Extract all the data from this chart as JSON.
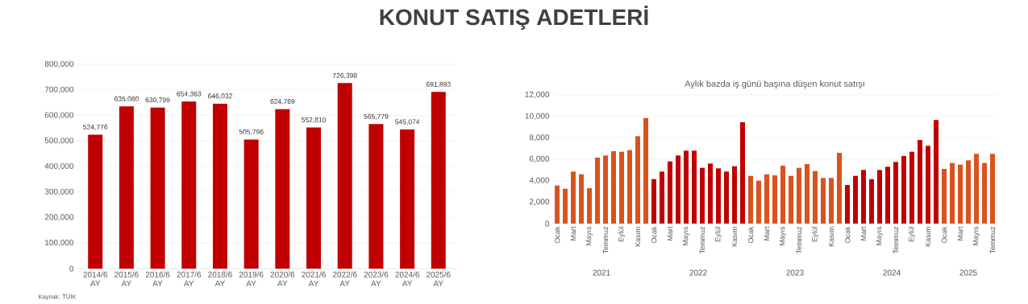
{
  "chart_data": [
    {
      "type": "bar",
      "title": "KONUT SATIŞ ADETLERİ",
      "categories": [
        "2014/6 AY",
        "2015/6 AY",
        "2016/6 AY",
        "2017/6 AY",
        "2018/6 AY",
        "2019/6 AY",
        "2020/6 AY",
        "2021/6 AY",
        "2022/6 AY",
        "2023/6 AY",
        "2024/6 AY",
        "2025/6 AY"
      ],
      "values": [
        524776,
        635080,
        630799,
        654363,
        646032,
        505796,
        624769,
        552810,
        726398,
        565779,
        545074,
        691893
      ],
      "value_labels": [
        "524,776",
        "635,080",
        "630,799",
        "654,363",
        "646,032",
        "505,796",
        "624,769",
        "552,810",
        "726,398",
        "565,779",
        "545,074",
        "691,893"
      ],
      "color": "#c00000",
      "ylim": [
        0,
        800000
      ],
      "yticks": [
        {
          "value": 0,
          "label": "0"
        },
        {
          "value": 100000,
          "label": "100,000"
        },
        {
          "value": 200000,
          "label": "200,000"
        },
        {
          "value": 300000,
          "label": "300,000"
        },
        {
          "value": 400000,
          "label": "400,000"
        },
        {
          "value": 500000,
          "label": "500,000"
        },
        {
          "value": 600000,
          "label": "600,000"
        },
        {
          "value": 700000,
          "label": "700,000"
        },
        {
          "value": 800000,
          "label": "800,000"
        }
      ],
      "grid": "y",
      "annotations": [
        "Kaynak: TÜİK"
      ]
    },
    {
      "type": "bar",
      "title": "Aylık bazda iş günü başına düşen konut satışı",
      "categories": [
        "Ocak",
        null,
        "Mart",
        null,
        "Mayıs",
        null,
        "Temmuz",
        null,
        "Eylül",
        null,
        "Kasım",
        null,
        "Ocak",
        null,
        "Mart",
        null,
        "Mayıs",
        null,
        "Temmuz",
        null,
        "Eylül",
        null,
        "Kasım",
        null,
        "Ocak",
        null,
        "Mart",
        null,
        "Mayıs",
        null,
        "Temmuz",
        null,
        "Eylül",
        null,
        "Kasım",
        null,
        "Ocak",
        null,
        "Mart",
        null,
        "Mayıs",
        null,
        "Temmuz",
        null,
        "Eylül",
        null,
        "Kasım",
        null,
        "Ocak",
        null,
        "Mart",
        null,
        "Mayıs",
        null,
        "Temmuz"
      ],
      "values": [
        3550,
        3250,
        4850,
        4600,
        3300,
        6150,
        6350,
        6750,
        6700,
        6850,
        8150,
        9850,
        4150,
        4850,
        5800,
        6350,
        6800,
        6800,
        5200,
        5600,
        5150,
        4850,
        5350,
        9450,
        4450,
        4000,
        4600,
        4500,
        5400,
        4450,
        5200,
        5550,
        4900,
        4250,
        4250,
        6600,
        3600,
        4450,
        5000,
        4150,
        5000,
        5300,
        5750,
        6300,
        6700,
        7800,
        7250,
        9650,
        5100,
        5650,
        5500,
        5900,
        6500,
        5650,
        6500
      ],
      "colors": [
        "#d9531e",
        "#d9531e",
        "#d9531e",
        "#d9531e",
        "#d9531e",
        "#d9531e",
        "#d9531e",
        "#d9531e",
        "#d9531e",
        "#d9531e",
        "#d9531e",
        "#d9531e",
        "#c00000",
        "#c00000",
        "#c00000",
        "#c00000",
        "#c00000",
        "#c00000",
        "#c00000",
        "#c00000",
        "#c00000",
        "#c00000",
        "#c00000",
        "#c00000",
        "#d9531e",
        "#d9531e",
        "#d9531e",
        "#d9531e",
        "#d9531e",
        "#d9531e",
        "#d9531e",
        "#d9531e",
        "#d9531e",
        "#d9531e",
        "#d9531e",
        "#d9531e",
        "#c00000",
        "#c00000",
        "#c00000",
        "#c00000",
        "#c00000",
        "#c00000",
        "#c00000",
        "#c00000",
        "#c00000",
        "#c00000",
        "#c00000",
        "#c00000",
        "#d9531e",
        "#d9531e",
        "#d9531e",
        "#d9531e",
        "#d9531e",
        "#d9531e",
        "#d9531e"
      ],
      "ylim": [
        0,
        12000
      ],
      "yticks": [
        {
          "value": 0,
          "label": "0"
        },
        {
          "value": 2000,
          "label": "2,000"
        },
        {
          "value": 4000,
          "label": "4,000"
        },
        {
          "value": 6000,
          "label": "6,000"
        },
        {
          "value": 8000,
          "label": "8,000"
        },
        {
          "value": 10000,
          "label": "10,000"
        },
        {
          "value": 12000,
          "label": "12,000"
        }
      ],
      "grid": "y",
      "annotations": [
        "2021",
        "2022",
        "2023",
        "2024",
        "2025"
      ]
    }
  ]
}
